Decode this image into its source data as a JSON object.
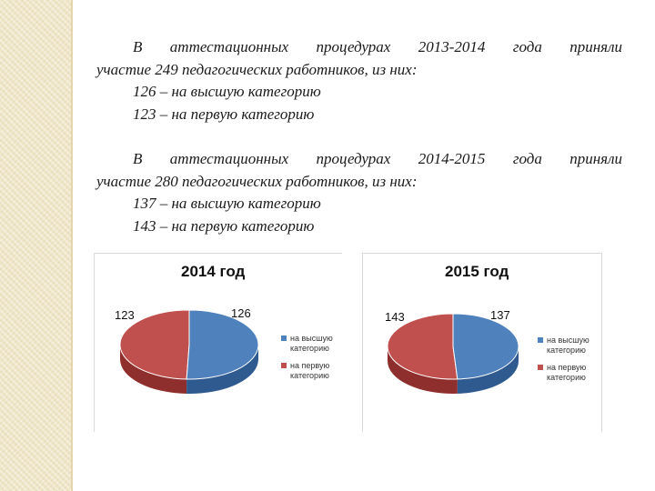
{
  "block1": {
    "line1": "В аттестационных процедурах 2013-2014 года приняли",
    "line2": "участие 249 педагогических работников, из них:",
    "line3": "126 – на высшую категорию",
    "line4": "123 – на первую категорию"
  },
  "block2": {
    "line1": "В аттестационных процедурах 2014-2015 года приняли",
    "line2": "участие 280 педагогических работников, из них:",
    "line3": "137 – на высшую категорию",
    "line4": "143 – на первую категорию"
  },
  "colors": {
    "blue": "#4f81bd",
    "red": "#c0504d"
  },
  "chart_data": [
    {
      "type": "pie",
      "title": "2014 год",
      "categories": [
        "на высшую категорию",
        "на первую категорию"
      ],
      "values": [
        126,
        123
      ],
      "labels": [
        "126",
        "123"
      ],
      "legend": [
        "на высшую категорию",
        "на первую категорию"
      ]
    },
    {
      "type": "pie",
      "title": "2015 год",
      "categories": [
        "на высшую категорию",
        "на первую категорию"
      ],
      "values": [
        137,
        143
      ],
      "labels": [
        "137",
        "143"
      ],
      "legend": [
        "на высшую категорию",
        "на первую категорию"
      ]
    }
  ]
}
